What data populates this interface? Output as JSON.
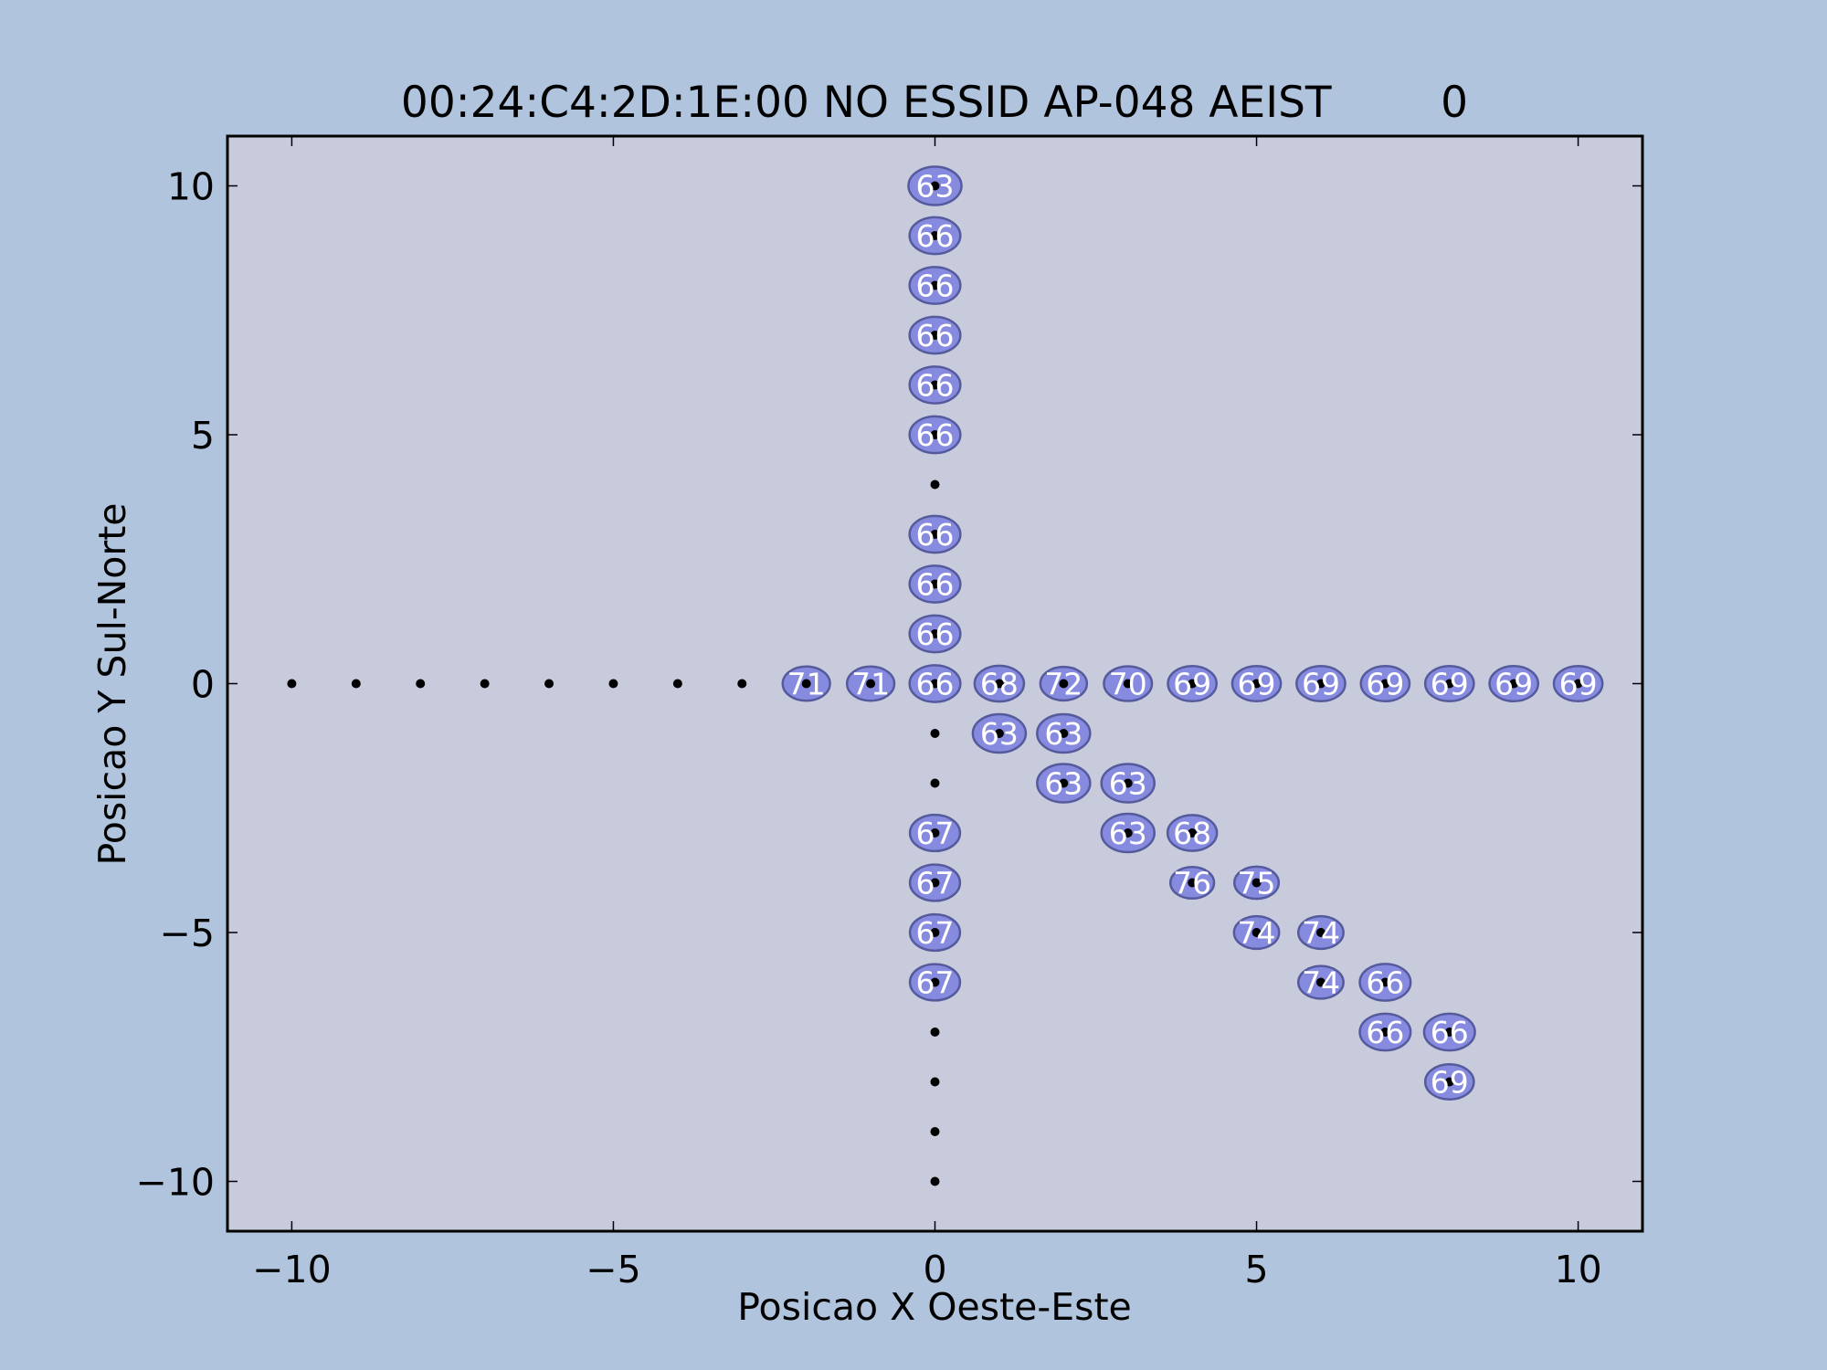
{
  "colors": {
    "figure_background": "#b0c4de",
    "axes_background": "#c8cbdb",
    "marker_fill": "#7b80e0",
    "marker_edge": "#555a9c",
    "marker_label": "#ffffff",
    "point": "#000000"
  },
  "chart_data": {
    "type": "scatter",
    "title": "00:24:C4:2D:1E:00 NO ESSID AP-048 AEIST        0",
    "xlabel": "Posicao X Oeste-Este",
    "ylabel": "Posicao Y Sul-Norte",
    "xlim": [
      -11,
      11
    ],
    "ylim": [
      -11,
      11
    ],
    "xticks": [
      -10,
      -5,
      0,
      5,
      10
    ],
    "yticks": [
      -10,
      -5,
      0,
      5,
      10
    ],
    "xtick_labels": [
      "−10",
      "−5",
      "0",
      "5",
      "10"
    ],
    "ytick_labels": [
      "−10",
      "−5",
      "0",
      "5",
      "10"
    ],
    "grid": false,
    "legend": "none",
    "measurement_positions": [
      [
        -10,
        0
      ],
      [
        -9,
        0
      ],
      [
        -8,
        0
      ],
      [
        -7,
        0
      ],
      [
        -6,
        0
      ],
      [
        -5,
        0
      ],
      [
        -4,
        0
      ],
      [
        -3,
        0
      ],
      [
        -2,
        0
      ],
      [
        -1,
        0
      ],
      [
        0,
        0
      ],
      [
        1,
        0
      ],
      [
        2,
        0
      ],
      [
        3,
        0
      ],
      [
        4,
        0
      ],
      [
        5,
        0
      ],
      [
        6,
        0
      ],
      [
        7,
        0
      ],
      [
        8,
        0
      ],
      [
        9,
        0
      ],
      [
        10,
        0
      ],
      [
        0,
        1
      ],
      [
        0,
        2
      ],
      [
        0,
        3
      ],
      [
        0,
        4
      ],
      [
        0,
        5
      ],
      [
        0,
        6
      ],
      [
        0,
        7
      ],
      [
        0,
        8
      ],
      [
        0,
        9
      ],
      [
        0,
        10
      ],
      [
        0,
        -1
      ],
      [
        0,
        -2
      ],
      [
        0,
        -3
      ],
      [
        0,
        -4
      ],
      [
        0,
        -5
      ],
      [
        0,
        -6
      ],
      [
        0,
        -7
      ],
      [
        0,
        -8
      ],
      [
        0,
        -9
      ],
      [
        0,
        -10
      ],
      [
        1,
        -1
      ],
      [
        2,
        -1
      ],
      [
        2,
        -2
      ],
      [
        3,
        -2
      ],
      [
        3,
        -3
      ],
      [
        4,
        -3
      ],
      [
        4,
        -4
      ],
      [
        5,
        -4
      ],
      [
        5,
        -5
      ],
      [
        6,
        -5
      ],
      [
        6,
        -6
      ],
      [
        7,
        -6
      ],
      [
        7,
        -7
      ],
      [
        8,
        -7
      ],
      [
        8,
        -8
      ]
    ],
    "signal_readings": [
      {
        "x": 0,
        "y": 10,
        "value": 63
      },
      {
        "x": 0,
        "y": 9,
        "value": 66
      },
      {
        "x": 0,
        "y": 8,
        "value": 66
      },
      {
        "x": 0,
        "y": 7,
        "value": 66
      },
      {
        "x": 0,
        "y": 6,
        "value": 66
      },
      {
        "x": 0,
        "y": 5,
        "value": 66
      },
      {
        "x": 0,
        "y": 3,
        "value": 66
      },
      {
        "x": 0,
        "y": 2,
        "value": 66
      },
      {
        "x": 0,
        "y": 1,
        "value": 66
      },
      {
        "x": -2,
        "y": 0,
        "value": 71
      },
      {
        "x": -1,
        "y": 0,
        "value": 71
      },
      {
        "x": 0,
        "y": 0,
        "value": 66
      },
      {
        "x": 1,
        "y": 0,
        "value": 68
      },
      {
        "x": 2,
        "y": 0,
        "value": 72
      },
      {
        "x": 3,
        "y": 0,
        "value": 70
      },
      {
        "x": 4,
        "y": 0,
        "value": 69
      },
      {
        "x": 5,
        "y": 0,
        "value": 69
      },
      {
        "x": 6,
        "y": 0,
        "value": 69
      },
      {
        "x": 7,
        "y": 0,
        "value": 69
      },
      {
        "x": 8,
        "y": 0,
        "value": 69
      },
      {
        "x": 9,
        "y": 0,
        "value": 69
      },
      {
        "x": 10,
        "y": 0,
        "value": 69
      },
      {
        "x": 1,
        "y": -1,
        "value": 63
      },
      {
        "x": 2,
        "y": -1,
        "value": 63
      },
      {
        "x": 2,
        "y": -2,
        "value": 63
      },
      {
        "x": 3,
        "y": -2,
        "value": 63
      },
      {
        "x": 3,
        "y": -3,
        "value": 63
      },
      {
        "x": 4,
        "y": -3,
        "value": 68
      },
      {
        "x": 0,
        "y": -3,
        "value": 67
      },
      {
        "x": 0,
        "y": -4,
        "value": 67
      },
      {
        "x": 0,
        "y": -5,
        "value": 67
      },
      {
        "x": 0,
        "y": -6,
        "value": 67
      },
      {
        "x": 4,
        "y": -4,
        "value": 76
      },
      {
        "x": 5,
        "y": -4,
        "value": 75
      },
      {
        "x": 5,
        "y": -5,
        "value": 74
      },
      {
        "x": 6,
        "y": -5,
        "value": 74
      },
      {
        "x": 6,
        "y": -6,
        "value": 74
      },
      {
        "x": 7,
        "y": -6,
        "value": 66
      },
      {
        "x": 7,
        "y": -7,
        "value": 66
      },
      {
        "x": 8,
        "y": -7,
        "value": 66
      },
      {
        "x": 8,
        "y": -8,
        "value": 69
      }
    ]
  }
}
